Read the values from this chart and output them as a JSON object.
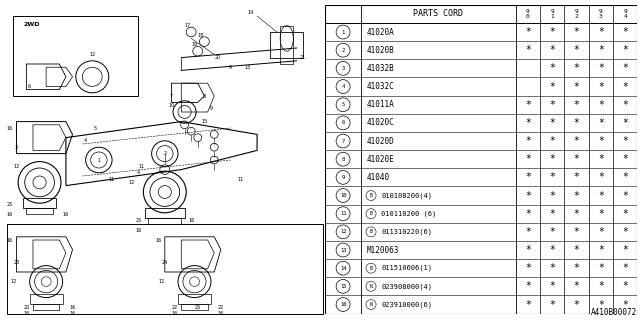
{
  "title": "A410B00072",
  "table_header": "PARTS CORD",
  "year_cols": [
    "9\n0",
    "9\n1",
    "9\n2",
    "9\n3",
    "9\n4"
  ],
  "rows": [
    {
      "num": "1",
      "code": "41020A",
      "stars": [
        true,
        true,
        true,
        true,
        true
      ],
      "prefix": ""
    },
    {
      "num": "2",
      "code": "41020B",
      "stars": [
        true,
        true,
        true,
        true,
        true
      ],
      "prefix": ""
    },
    {
      "num": "3",
      "code": "41032B",
      "stars": [
        false,
        true,
        true,
        true,
        true
      ],
      "prefix": ""
    },
    {
      "num": "4",
      "code": "41032C",
      "stars": [
        false,
        true,
        true,
        true,
        true
      ],
      "prefix": ""
    },
    {
      "num": "5",
      "code": "41011A",
      "stars": [
        true,
        true,
        true,
        true,
        true
      ],
      "prefix": ""
    },
    {
      "num": "6",
      "code": "41020C",
      "stars": [
        true,
        true,
        true,
        true,
        true
      ],
      "prefix": ""
    },
    {
      "num": "7",
      "code": "41020D",
      "stars": [
        true,
        true,
        true,
        true,
        true
      ],
      "prefix": ""
    },
    {
      "num": "8",
      "code": "41020E",
      "stars": [
        true,
        true,
        true,
        true,
        true
      ],
      "prefix": ""
    },
    {
      "num": "9",
      "code": "41040",
      "stars": [
        true,
        true,
        true,
        true,
        true
      ],
      "prefix": ""
    },
    {
      "num": "10",
      "code": "010108200(4)",
      "stars": [
        true,
        true,
        true,
        true,
        true
      ],
      "prefix": "B"
    },
    {
      "num": "11",
      "code": "010110200 (6)",
      "stars": [
        true,
        true,
        true,
        true,
        true
      ],
      "prefix": "B"
    },
    {
      "num": "12",
      "code": "011310220(6)",
      "stars": [
        true,
        true,
        true,
        true,
        true
      ],
      "prefix": "B"
    },
    {
      "num": "13",
      "code": "M120063",
      "stars": [
        true,
        true,
        true,
        true,
        true
      ],
      "prefix": ""
    },
    {
      "num": "14",
      "code": "011510606(1)",
      "stars": [
        true,
        true,
        true,
        true,
        true
      ],
      "prefix": "B"
    },
    {
      "num": "15",
      "code": "023908000(4)",
      "stars": [
        true,
        true,
        true,
        true,
        true
      ],
      "prefix": "N"
    },
    {
      "num": "16",
      "code": "023910000(6)",
      "stars": [
        true,
        true,
        true,
        true,
        true
      ],
      "prefix": "N"
    }
  ],
  "bg_color": "#ffffff",
  "text_color": "#000000"
}
